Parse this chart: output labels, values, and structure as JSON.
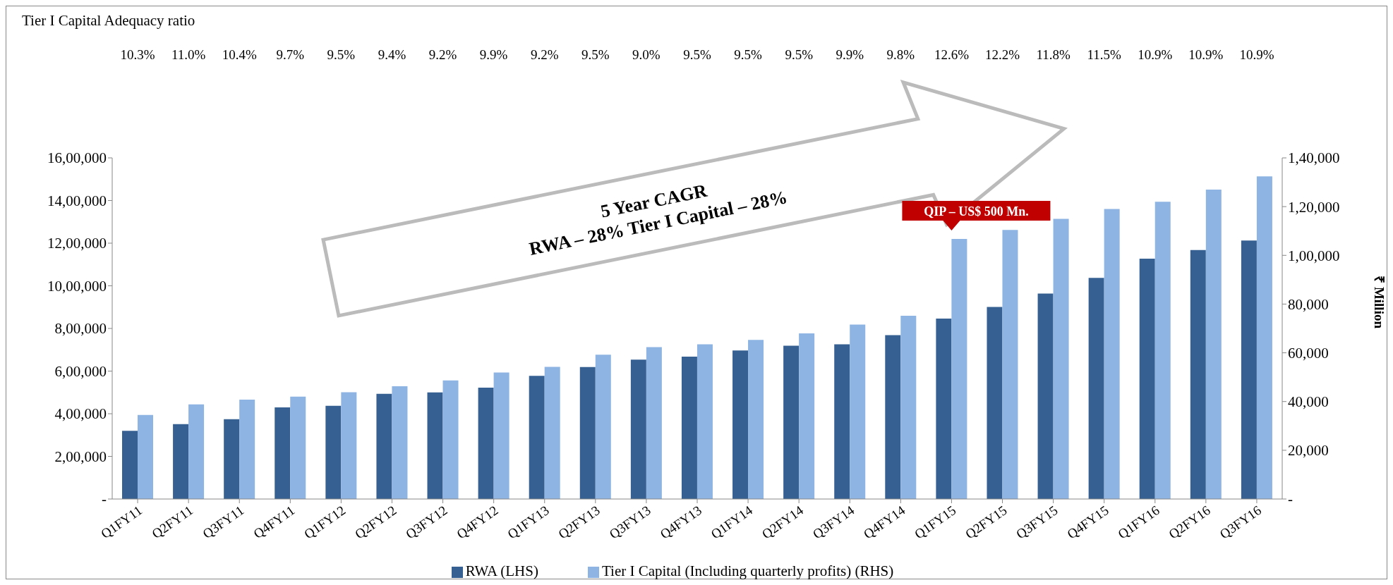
{
  "chart_data": {
    "type": "bar",
    "title": "Tier I Capital Adequacy ratio",
    "categories": [
      "Q1FY11",
      "Q2FY11",
      "Q3FY11",
      "Q4FY11",
      "Q1FY12",
      "Q2FY12",
      "Q3FY12",
      "Q4FY12",
      "Q1FY13",
      "Q2FY13",
      "Q3FY13",
      "Q4FY13",
      "Q1FY14",
      "Q2FY14",
      "Q3FY14",
      "Q4FY14",
      "Q1FY15",
      "Q2FY15",
      "Q3FY15",
      "Q4FY15",
      "Q1FY16",
      "Q2FY16",
      "Q3FY16"
    ],
    "series": [
      {
        "name": "RWA (LHS)",
        "color": "#376092",
        "values": [
          320000,
          351000,
          374000,
          430000,
          437000,
          493000,
          500000,
          522000,
          578000,
          619000,
          654000,
          668000,
          697000,
          719000,
          726000,
          769000,
          846000,
          901000,
          964000,
          1037000,
          1127000,
          1168000,
          1212000
        ]
      },
      {
        "name": "Tier I Capital (Including quarterly profits) (RHS)",
        "color": "#8db4e2",
        "axis": "y2",
        "values": [
          34500,
          38800,
          40800,
          42000,
          43800,
          46300,
          48700,
          51900,
          54200,
          59200,
          62300,
          63500,
          65300,
          68000,
          71600,
          75200,
          106700,
          110400,
          115000,
          119000,
          122000,
          127000,
          132400
        ]
      }
    ],
    "y2label": "₹ Million",
    "ylim": [
      0,
      1600000
    ],
    "yticks": [
      {
        "value": 0,
        "label": "-"
      },
      {
        "value": 200000,
        "label": "2,00,000"
      },
      {
        "value": 400000,
        "label": "4,00,000"
      },
      {
        "value": 600000,
        "label": "6,00,000"
      },
      {
        "value": 800000,
        "label": "8,00,000"
      },
      {
        "value": 1000000,
        "label": "10,00,000"
      },
      {
        "value": 1200000,
        "label": "12,00,000"
      },
      {
        "value": 1400000,
        "label": "14,00,000"
      },
      {
        "value": 1600000,
        "label": "16,00,000"
      }
    ],
    "y2lim": [
      0,
      140000
    ],
    "y2ticks": [
      {
        "value": 0,
        "label": "-"
      },
      {
        "value": 20000,
        "label": "20,000"
      },
      {
        "value": 40000,
        "label": "40,000"
      },
      {
        "value": 60000,
        "label": "60,000"
      },
      {
        "value": 80000,
        "label": "80,000"
      },
      {
        "value": 100000,
        "label": "1,00,000"
      },
      {
        "value": 120000,
        "label": "1,20,000"
      },
      {
        "value": 140000,
        "label": "1,40,000"
      }
    ],
    "legend": "bottom",
    "annotations": [
      "10.3%",
      "11.0%",
      "10.4%",
      "9.7%",
      "9.5%",
      "9.4%",
      "9.2%",
      "9.9%",
      "9.2%",
      "9.5%",
      "9.0%",
      "9.5%",
      "9.5%",
      "9.5%",
      "9.9%",
      "9.8%",
      "12.6%",
      "12.2%",
      "11.8%",
      "11.5%",
      "10.9%",
      "10.9%",
      "10.9%",
      "5 Year CAGR\nRWA – 28% Tier I Capital – 28%",
      "QIP – US$ 500 Mn."
    ]
  }
}
